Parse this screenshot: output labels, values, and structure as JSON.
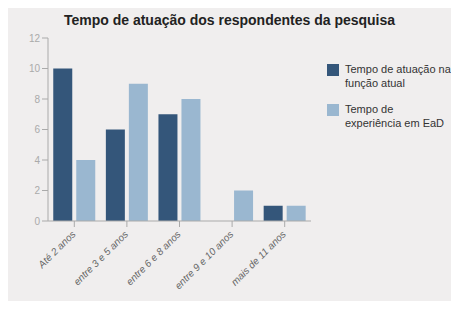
{
  "chart_data": {
    "type": "bar",
    "title": "Tempo de atuação dos respondentes da pesquisa",
    "categories": [
      "Até 2 anos",
      "entre 3 e 5 anos",
      "entre 6 e 8 anos",
      "entre 9 e 10 anos",
      "mais de 11 anos"
    ],
    "series": [
      {
        "name": "Tempo de atuação na\nfunção atual",
        "color": "#34567a",
        "values": [
          10,
          6,
          7,
          0,
          1
        ]
      },
      {
        "name": "Tempo de\nexperiência em EaD",
        "color": "#9ab7d0",
        "values": [
          4,
          9,
          8,
          2,
          1
        ]
      }
    ],
    "ylim": [
      0,
      12
    ],
    "yticks": [
      0,
      2,
      4,
      6,
      8,
      10,
      12
    ],
    "grid": false,
    "legend": "right"
  }
}
